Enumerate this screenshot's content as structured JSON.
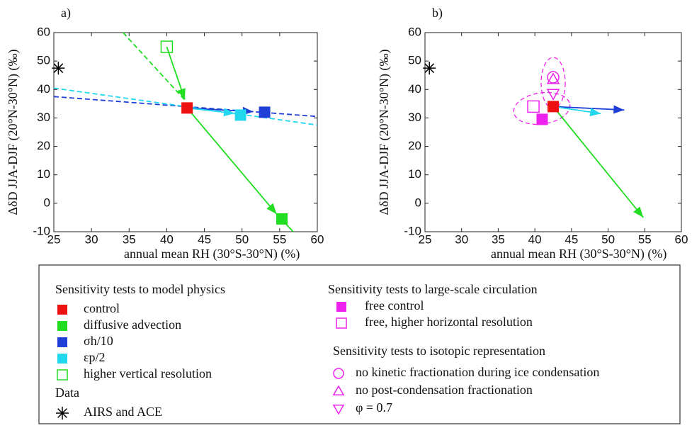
{
  "chart_data": [
    {
      "type": "scatter",
      "panel_label": "a)",
      "xlabel": "annual mean RH (30°S-30°N) (%)",
      "ylabel": "ΔδD JJA-DJF (20°N-30°N) (‰)",
      "xlim": [
        25,
        60
      ],
      "ylim": [
        -10,
        60
      ],
      "xticks": [
        25,
        30,
        35,
        40,
        45,
        50,
        55,
        60
      ],
      "yticks": [
        -10,
        0,
        10,
        20,
        30,
        40,
        50,
        60
      ],
      "lines": [
        {
          "color": "#1f3fd6",
          "style": "dashed",
          "arrow": false,
          "x": [
            25,
            60
          ],
          "y": [
            37.5,
            30.5
          ]
        },
        {
          "color": "#22d8ee",
          "style": "dashed",
          "arrow": false,
          "x": [
            25,
            60
          ],
          "y": [
            40.5,
            27.5
          ]
        },
        {
          "color": "#22dd22",
          "style": "dashed",
          "arrow": false,
          "x": [
            34.2,
            42.5
          ],
          "y": [
            60,
            36
          ]
        },
        {
          "color": "#22dd22",
          "style": "solid",
          "arrow": true,
          "x": [
            40,
            42.4
          ],
          "y": [
            55,
            36.5
          ]
        },
        {
          "color": "#22dd22",
          "style": "solid",
          "arrow": true,
          "x": [
            42.7,
            54.6
          ],
          "y": [
            33.5,
            -3.8
          ]
        },
        {
          "color": "#22dd22",
          "style": "solid",
          "arrow": false,
          "x": [
            54.6,
            56.8
          ],
          "y": [
            -3.8,
            -10
          ]
        },
        {
          "color": "#1f3fd6",
          "style": "solid",
          "arrow": true,
          "x": [
            42.7,
            51.5
          ],
          "y": [
            33.5,
            32.2
          ]
        },
        {
          "color": "#22d8ee",
          "style": "solid",
          "arrow": true,
          "x": [
            42.7,
            49
          ],
          "y": [
            33.5,
            31.6
          ]
        }
      ],
      "series": [
        {
          "color": "#22dd22",
          "marker": "open-square",
          "x": [
            40
          ],
          "y": [
            55
          ]
        },
        {
          "color": "#22dd22",
          "marker": "square",
          "x": [
            55.3
          ],
          "y": [
            -5.5
          ]
        },
        {
          "color": "#1f3fd6",
          "marker": "square",
          "x": [
            53
          ],
          "y": [
            32
          ]
        },
        {
          "color": "#22d8ee",
          "marker": "square",
          "x": [
            49.8
          ],
          "y": [
            31
          ]
        },
        {
          "color": "#ee1111",
          "marker": "square",
          "x": [
            42.7
          ],
          "y": [
            33.5
          ]
        },
        {
          "color": "#000000",
          "marker": "star",
          "x": [
            25.6
          ],
          "y": [
            47.5
          ]
        }
      ]
    },
    {
      "type": "scatter",
      "panel_label": "b)",
      "xlabel": "annual mean RH (30°S-30°N) (%)",
      "ylabel": "ΔδD JJA-DJF (20°N-30°N) (‰)",
      "xlim": [
        25,
        60
      ],
      "ylim": [
        -10,
        60
      ],
      "xticks": [
        25,
        30,
        35,
        40,
        45,
        50,
        55,
        60
      ],
      "yticks": [
        -10,
        0,
        10,
        20,
        30,
        40,
        50,
        60
      ],
      "lines": [
        {
          "color": "#22dd22",
          "style": "solid",
          "arrow": true,
          "x": [
            42.5,
            54.8
          ],
          "y": [
            34,
            -5
          ]
        },
        {
          "color": "#1f3fd6",
          "style": "solid",
          "arrow": true,
          "x": [
            42.5,
            52.2
          ],
          "y": [
            34,
            32.8
          ]
        },
        {
          "color": "#22d8ee",
          "style": "solid",
          "arrow": true,
          "x": [
            42.5,
            49
          ],
          "y": [
            34,
            31.5
          ]
        }
      ],
      "series": [
        {
          "color": "#ee22ee",
          "marker": "square",
          "x": [
            41
          ],
          "y": [
            29.5
          ]
        },
        {
          "color": "#ee22ee",
          "marker": "open-square",
          "x": [
            39.8
          ],
          "y": [
            34
          ]
        },
        {
          "color": "#ee22ee",
          "marker": "circle",
          "x": [
            42.5
          ],
          "y": [
            44.3
          ]
        },
        {
          "color": "#ee22ee",
          "marker": "triangle-up",
          "x": [
            42.5
          ],
          "y": [
            43.6
          ]
        },
        {
          "color": "#ee22ee",
          "marker": "triangle-down",
          "x": [
            42.5
          ],
          "y": [
            38.5
          ]
        },
        {
          "color": "#ee1111",
          "marker": "square",
          "x": [
            42.5
          ],
          "y": [
            34
          ]
        },
        {
          "color": "#000000",
          "marker": "star",
          "x": [
            25.6
          ],
          "y": [
            47.5
          ]
        }
      ]
    }
  ],
  "legend": {
    "groups": [
      {
        "title": "Sensitivity tests to model physics",
        "items": [
          {
            "label": "control",
            "color": "#ee1111",
            "marker": "square"
          },
          {
            "label": "diffusive advection",
            "color": "#22dd22",
            "marker": "square"
          },
          {
            "label": "σh/10",
            "color": "#1f3fd6",
            "marker": "square"
          },
          {
            "label": "εp/2",
            "color": "#22d8ee",
            "marker": "square"
          },
          {
            "label": "higher vertical resolution",
            "color": "#22dd22",
            "marker": "open-square"
          }
        ]
      },
      {
        "title": "Data",
        "items": [
          {
            "label": "AIRS and ACE",
            "color": "#000000",
            "marker": "star"
          }
        ]
      },
      {
        "title": "Sensitivity tests to large-scale circulation",
        "items": [
          {
            "label": "free control",
            "color": "#ee22ee",
            "marker": "square"
          },
          {
            "label": "free, higher horizontal resolution",
            "color": "#ee22ee",
            "marker": "open-square"
          }
        ]
      },
      {
        "title": "Sensitivity tests to isotopic representation",
        "items": [
          {
            "label": "no kinetic fractionation during ice condensation",
            "color": "#ee22ee",
            "marker": "circle"
          },
          {
            "label": "no post-condensation fractionation",
            "color": "#ee22ee",
            "marker": "triangle-up"
          },
          {
            "label": "φ = 0.7",
            "color": "#ee22ee",
            "marker": "triangle-down"
          }
        ]
      }
    ]
  }
}
